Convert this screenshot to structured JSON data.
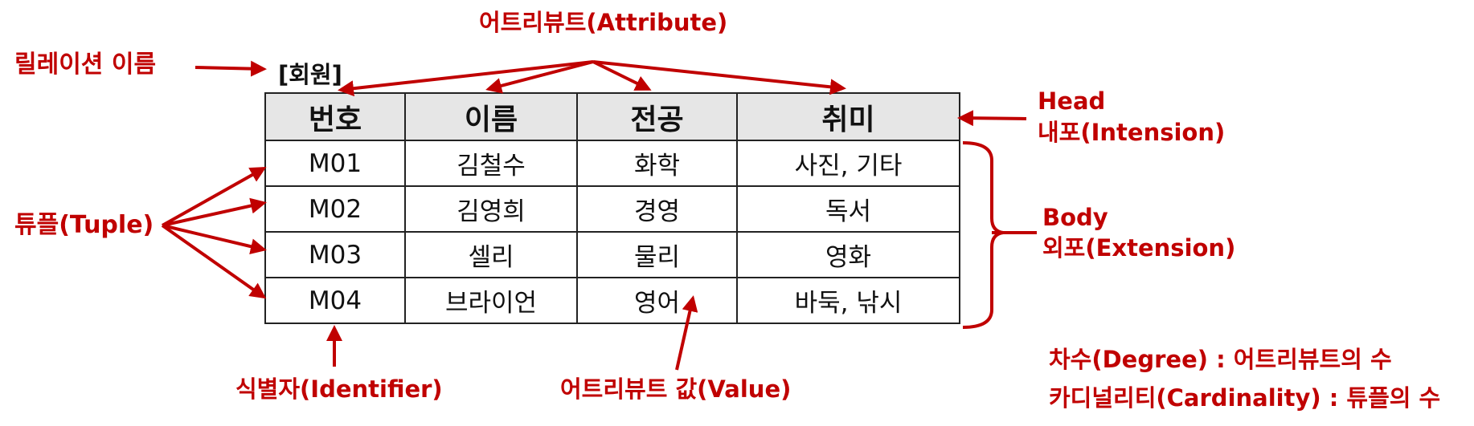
{
  "relation_name": "[회원]",
  "table": {
    "headers": [
      "번호",
      "이름",
      "전공",
      "취미"
    ],
    "rows": [
      [
        "M01",
        "김철수",
        "화학",
        "사진, 기타"
      ],
      [
        "M02",
        "김영희",
        "경영",
        "독서"
      ],
      [
        "M03",
        "셀리",
        "물리",
        "영화"
      ],
      [
        "M04",
        "브라이언",
        "영어",
        "바둑, 낚시"
      ]
    ]
  },
  "labels": {
    "attribute": "어트리뷰트(Attribute)",
    "relation_name": "릴레이션 이름",
    "head": "Head",
    "intension": "내포(Intension)",
    "tuple": "튜플(Tuple)",
    "body": "Body",
    "extension": "외포(Extension)",
    "identifier": "식별자(Identifier)",
    "attribute_value": "어트리뷰트 값(Value)",
    "degree": "차수(Degree) : 어트리뷰트의 수",
    "cardinality": "카디널리티(Cardinality) : 튜플의 수"
  },
  "colors": {
    "annotation": "#c00000",
    "header_background": "#e6e6e6",
    "border": "#222222"
  }
}
